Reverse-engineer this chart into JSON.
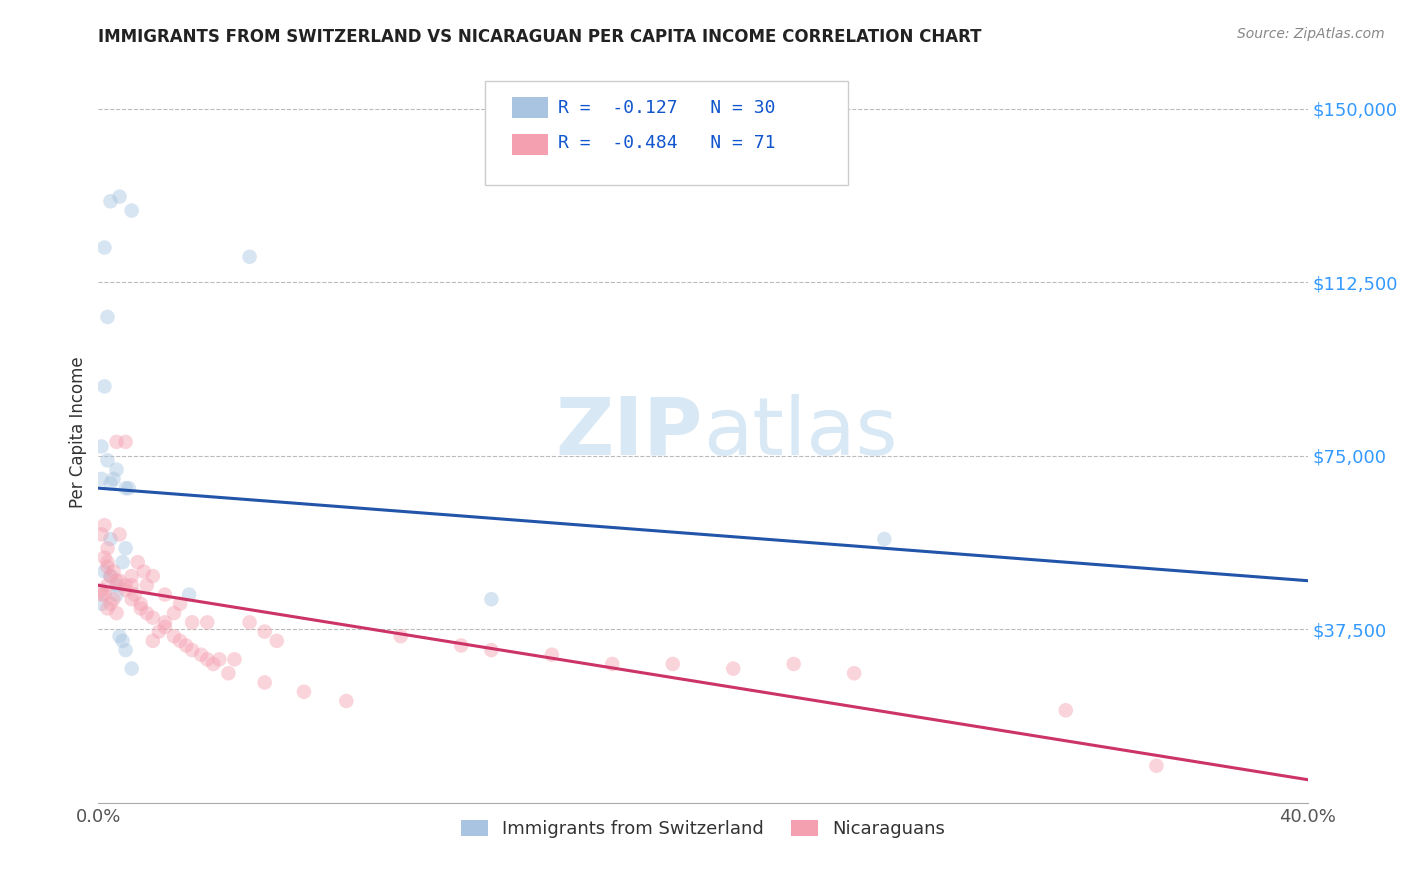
{
  "title": "IMMIGRANTS FROM SWITZERLAND VS NICARAGUAN PER CAPITA INCOME CORRELATION CHART",
  "source": "Source: ZipAtlas.com",
  "ylabel": "Per Capita Income",
  "yticks": [
    0,
    37500,
    75000,
    112500,
    150000
  ],
  "ytick_labels": [
    "",
    "$37,500",
    "$75,000",
    "$112,500",
    "$150,000"
  ],
  "ylim": [
    0,
    160000
  ],
  "xlim": [
    0.0,
    0.4
  ],
  "legend1_text": "R =  -0.127   N = 30",
  "legend2_text": "R =  -0.484   N = 71",
  "legend_label1": "Immigrants from Switzerland",
  "legend_label2": "Nicaraguans",
  "blue_color": "#A8C4E0",
  "pink_color": "#F4A0B0",
  "blue_line_color": "#2255AA",
  "pink_line_color": "#CC3366",
  "background_color": "#FFFFFF",
  "grid_color": "#BBBBBB",
  "title_color": "#222222",
  "axis_label_color": "#333333",
  "ytick_color": "#3399FF",
  "xtick_color": "#555555",
  "legend_text_color": "#1155CC",
  "watermark_color": "#D8E8F5",
  "blue_scatter_x": [
    0.004,
    0.007,
    0.011,
    0.002,
    0.003,
    0.002,
    0.001,
    0.001,
    0.005,
    0.01,
    0.003,
    0.004,
    0.006,
    0.009,
    0.004,
    0.009,
    0.008,
    0.05,
    0.006,
    0.03,
    0.002,
    0.004,
    0.006,
    0.008,
    0.009,
    0.26,
    0.001,
    0.13,
    0.007,
    0.011
  ],
  "blue_scatter_y": [
    130000,
    131000,
    128000,
    120000,
    105000,
    90000,
    77000,
    70000,
    70000,
    68000,
    74000,
    69000,
    72000,
    68000,
    57000,
    55000,
    52000,
    118000,
    47000,
    45000,
    50000,
    49000,
    45000,
    35000,
    33000,
    57000,
    43000,
    44000,
    36000,
    29000
  ],
  "pink_scatter_x": [
    0.001,
    0.002,
    0.003,
    0.002,
    0.003,
    0.004,
    0.003,
    0.002,
    0.001,
    0.001,
    0.005,
    0.004,
    0.003,
    0.006,
    0.007,
    0.009,
    0.011,
    0.006,
    0.013,
    0.015,
    0.018,
    0.011,
    0.016,
    0.022,
    0.027,
    0.025,
    0.031,
    0.036,
    0.009,
    0.012,
    0.014,
    0.006,
    0.016,
    0.022,
    0.02,
    0.018,
    0.027,
    0.031,
    0.036,
    0.04,
    0.045,
    0.05,
    0.055,
    0.059,
    0.1,
    0.12,
    0.13,
    0.15,
    0.17,
    0.19,
    0.21,
    0.23,
    0.25,
    0.003,
    0.005,
    0.007,
    0.009,
    0.011,
    0.014,
    0.018,
    0.022,
    0.025,
    0.029,
    0.034,
    0.038,
    0.043,
    0.055,
    0.068,
    0.082,
    0.32,
    0.35
  ],
  "pink_scatter_y": [
    58000,
    60000,
    55000,
    53000,
    51000,
    49000,
    47000,
    45000,
    45000,
    46000,
    44000,
    43000,
    42000,
    78000,
    58000,
    78000,
    47000,
    48000,
    52000,
    50000,
    49000,
    49000,
    47000,
    45000,
    43000,
    41000,
    39000,
    39000,
    47000,
    45000,
    43000,
    41000,
    41000,
    39000,
    37000,
    35000,
    35000,
    33000,
    31000,
    31000,
    31000,
    39000,
    37000,
    35000,
    36000,
    34000,
    33000,
    32000,
    30000,
    30000,
    29000,
    30000,
    28000,
    52000,
    50000,
    48000,
    46000,
    44000,
    42000,
    40000,
    38000,
    36000,
    34000,
    32000,
    30000,
    28000,
    26000,
    24000,
    22000,
    20000,
    8000
  ],
  "blue_trend_x": [
    0.0,
    0.4
  ],
  "blue_trend_y": [
    68000,
    48000
  ],
  "pink_trend_x": [
    0.0,
    0.4
  ],
  "pink_trend_y": [
    47000,
    5000
  ],
  "marker_size": 110,
  "marker_alpha": 0.45,
  "line_width": 2.2
}
